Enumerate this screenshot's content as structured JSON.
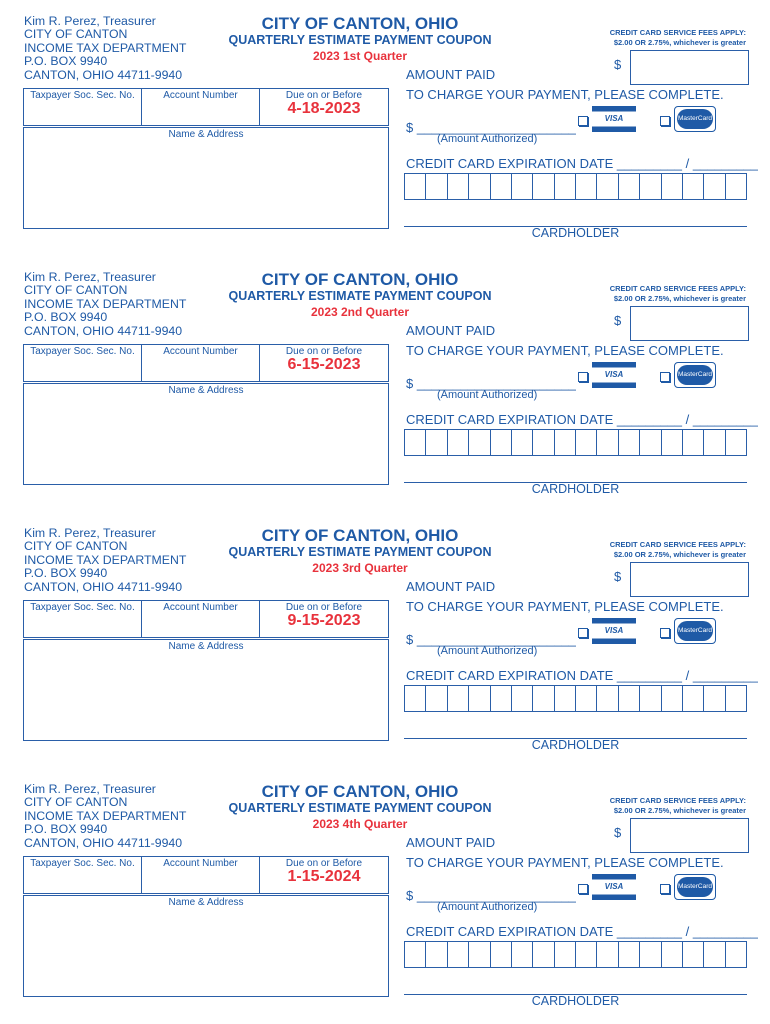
{
  "issuer": {
    "lines": [
      "Kim R. Perez, Treasurer",
      "CITY OF CANTON",
      "INCOME TAX DEPARTMENT",
      "P.O. BOX 9940",
      "CANTON, OHIO 44711-9940"
    ]
  },
  "labels": {
    "ssn": "Taxpayer Soc. Sec. No.",
    "account": "Account Number",
    "due": "Due on or Before",
    "name_address": "Name & Address",
    "title": "CITY OF CANTON, OHIO",
    "subtitle": "QUARTERLY ESTIMATE PAYMENT COUPON",
    "fee_line1": "CREDIT CARD SERVICE FEES APPLY:",
    "fee_line2": "$2.00 OR 2.75%, whichever is greater",
    "dollar": "$",
    "amount_paid": "AMOUNT PAID",
    "charge": "TO CHARGE YOUR PAYMENT, PLEASE COMPLETE.",
    "authorized_line": "$ ______________________",
    "amount_authorized": "(Amount Authorized)",
    "visa": "VISA",
    "mastercard": "MasterCard",
    "expiration": "CREDIT CARD EXPIRATION DATE _________ / _________",
    "cardholder": "CARDHOLDER"
  },
  "colors": {
    "primary": "#1f5aa6",
    "accent_red": "#e8323c"
  },
  "coupons": [
    {
      "quarter": "2023 1st Quarter",
      "due_date": "4-18-2023"
    },
    {
      "quarter": "2023 2nd Quarter",
      "due_date": "6-15-2023"
    },
    {
      "quarter": "2023 3rd Quarter",
      "due_date": "9-15-2023"
    },
    {
      "quarter": "2023 4th Quarter",
      "due_date": "1-15-2024"
    }
  ]
}
